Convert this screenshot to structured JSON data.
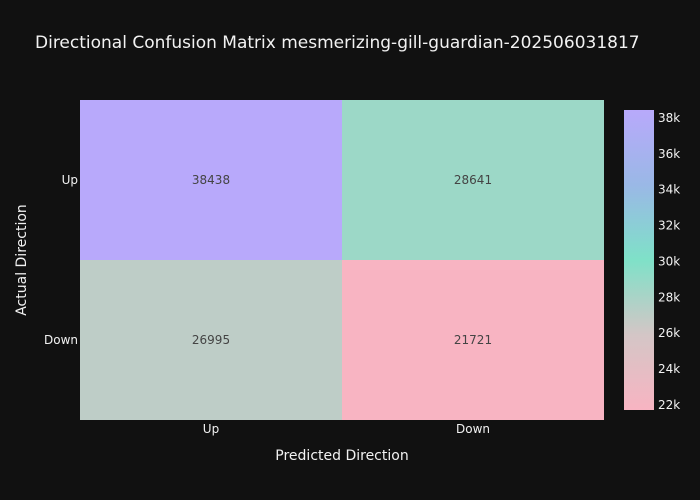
{
  "chart_data": {
    "type": "heatmap",
    "title": "Directional Confusion Matrix mesmerizing-gill-guardian-202506031817",
    "xlabel": "Predicted Direction",
    "ylabel": "Actual Direction",
    "x_categories": [
      "Up",
      "Down"
    ],
    "y_categories": [
      "Up",
      "Down"
    ],
    "values": [
      [
        38438,
        28641
      ],
      [
        26995,
        21721
      ]
    ],
    "colorscale": [
      [
        0,
        "#f8b4c2"
      ],
      [
        0.25,
        "#d4c6c6"
      ],
      [
        0.5,
        "#7fe1c8"
      ],
      [
        0.75,
        "#9ab8e6"
      ],
      [
        1,
        "#b8a9fb"
      ]
    ],
    "colorbar": {
      "range": [
        21721,
        38438
      ],
      "ticks": [
        22000,
        24000,
        26000,
        28000,
        30000,
        32000,
        34000,
        36000,
        38000
      ],
      "tick_labels": [
        "22k",
        "24k",
        "26k",
        "28k",
        "30k",
        "32k",
        "34k",
        "36k",
        "38k"
      ]
    },
    "background": "#111111"
  }
}
